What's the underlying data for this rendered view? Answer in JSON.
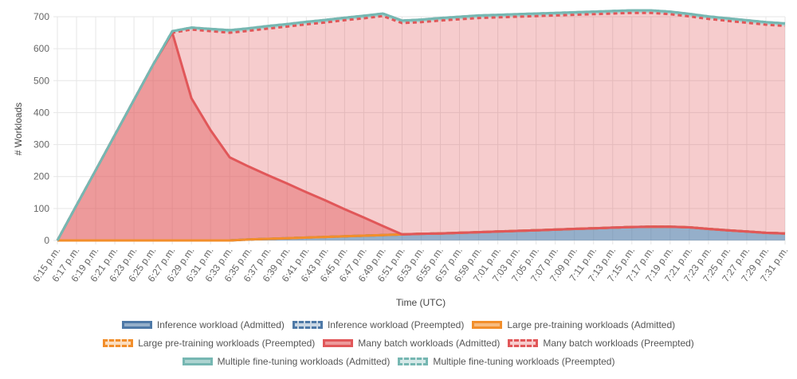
{
  "chart_data": {
    "type": "area",
    "stacked": true,
    "xlabel": "Time (UTC)",
    "ylabel": "# Workloads",
    "ylim": [
      0,
      700
    ],
    "yticks": [
      0,
      100,
      200,
      300,
      400,
      500,
      600,
      700
    ],
    "grid": true,
    "legend_position": "bottom",
    "x": [
      "6:15 p.m.",
      "6:17 p.m.",
      "6:19 p.m.",
      "6:21 p.m.",
      "6:23 p.m.",
      "6:25 p.m.",
      "6:27 p.m.",
      "6:29 p.m.",
      "6:31 p.m.",
      "6:33 p.m.",
      "6:35 p.m.",
      "6:37 p.m.",
      "6:39 p.m.",
      "6:41 p.m.",
      "6:43 p.m.",
      "6:45 p.m.",
      "6:47 p.m.",
      "6:49 p.m.",
      "6:51 p.m.",
      "6:53 p.m.",
      "6:55 p.m.",
      "6:57 p.m.",
      "6:59 p.m.",
      "7:01 p.m.",
      "7:03 p.m.",
      "7:05 p.m.",
      "7:07 p.m.",
      "7:09 p.m.",
      "7:11 p.m.",
      "7:13 p.m.",
      "7:15 p.m.",
      "7:17 p.m.",
      "7:19 p.m.",
      "7:21 p.m.",
      "7:23 p.m.",
      "7:25 p.m.",
      "7:27 p.m.",
      "7:29 p.m.",
      "7:31 p.m."
    ],
    "series": [
      {
        "name": "Inference workload (Admitted)",
        "color": "#4e79a7",
        "fill": "rgba(78,121,167,0.6)",
        "dashed": false,
        "values": [
          0,
          0,
          0,
          0,
          0,
          0,
          0,
          0,
          0,
          0,
          3,
          5,
          7,
          9,
          11,
          13,
          15,
          17,
          19,
          21,
          22,
          24,
          26,
          28,
          30,
          32,
          34,
          36,
          38,
          40,
          42,
          43,
          43,
          41,
          36,
          32,
          28,
          24,
          22
        ]
      },
      {
        "name": "Inference workload (Preempted)",
        "color": "#4e79a7",
        "fill": "rgba(78,121,167,0.3)",
        "dashed": true,
        "values": [
          0,
          0,
          0,
          0,
          0,
          0,
          0,
          0,
          0,
          0,
          0,
          0,
          0,
          0,
          0,
          0,
          0,
          0,
          0,
          0,
          0,
          0,
          0,
          0,
          0,
          0,
          0,
          0,
          0,
          0,
          0,
          0,
          0,
          0,
          0,
          0,
          0,
          0,
          0
        ]
      },
      {
        "name": "Large pre-training workloads (Admitted)",
        "color": "#f28e2b",
        "fill": "rgba(242,142,43,0.6)",
        "dashed": false,
        "values": [
          0,
          0,
          0,
          0,
          0,
          0,
          0,
          0,
          0,
          0,
          0,
          0,
          0,
          0,
          0,
          0,
          0,
          0,
          0,
          0,
          0,
          0,
          0,
          0,
          0,
          0,
          0,
          0,
          0,
          0,
          0,
          0,
          0,
          0,
          0,
          0,
          0,
          0,
          0
        ]
      },
      {
        "name": "Large pre-training workloads (Preempted)",
        "color": "#f28e2b",
        "fill": "rgba(242,142,43,0.3)",
        "dashed": true,
        "values": [
          0,
          0,
          0,
          0,
          0,
          0,
          0,
          0,
          0,
          0,
          0,
          0,
          0,
          0,
          0,
          0,
          0,
          0,
          0,
          0,
          0,
          0,
          0,
          0,
          0,
          0,
          0,
          0,
          0,
          0,
          0,
          0,
          0,
          0,
          0,
          0,
          0,
          0,
          0
        ]
      },
      {
        "name": "Many batch workloads (Admitted)",
        "color": "#e15759",
        "fill": "rgba(225,87,89,0.6)",
        "dashed": false,
        "values": [
          0,
          110,
          220,
          330,
          440,
          550,
          650,
          445,
          345,
          260,
          228,
          199,
          171,
          142,
          114,
          85,
          57,
          28,
          0,
          0,
          0,
          0,
          0,
          0,
          0,
          0,
          0,
          0,
          0,
          0,
          0,
          0,
          0,
          0,
          0,
          0,
          0,
          0,
          0
        ]
      },
      {
        "name": "Many batch workloads (Preempted)",
        "color": "#e15759",
        "fill": "rgba(225,87,89,0.3)",
        "dashed": true,
        "values": [
          0,
          0,
          0,
          0,
          0,
          0,
          0,
          215,
          310,
          390,
          425,
          459,
          491,
          525,
          557,
          591,
          623,
          657,
          661,
          662,
          666,
          668,
          670,
          670,
          670,
          670,
          670,
          670,
          670,
          670,
          670,
          669,
          665,
          660,
          657,
          655,
          653,
          651,
          649
        ]
      },
      {
        "name": "Multiple fine-tuning workloads (Admitted)",
        "color": "#76b7b2",
        "fill": "rgba(118,183,178,0.6)",
        "dashed": false,
        "values": [
          0,
          0,
          0,
          0,
          0,
          0,
          5,
          6,
          7,
          8,
          8,
          8,
          8,
          8,
          8,
          8,
          8,
          8,
          8,
          8,
          8,
          8,
          8,
          8,
          8,
          8,
          8,
          8,
          8,
          8,
          8,
          8,
          8,
          8,
          8,
          8,
          8,
          8,
          8
        ]
      },
      {
        "name": "Multiple fine-tuning workloads (Preempted)",
        "color": "#76b7b2",
        "fill": "rgba(118,183,178,0.3)",
        "dashed": true,
        "values": [
          0,
          0,
          0,
          0,
          0,
          0,
          0,
          0,
          0,
          0,
          0,
          0,
          0,
          0,
          0,
          0,
          0,
          0,
          0,
          0,
          0,
          0,
          0,
          0,
          0,
          0,
          0,
          0,
          0,
          0,
          0,
          0,
          0,
          0,
          0,
          0,
          0,
          0,
          0
        ]
      }
    ],
    "legend_rows": [
      [
        0,
        1,
        2
      ],
      [
        3,
        4,
        5
      ],
      [
        6,
        7
      ]
    ]
  }
}
